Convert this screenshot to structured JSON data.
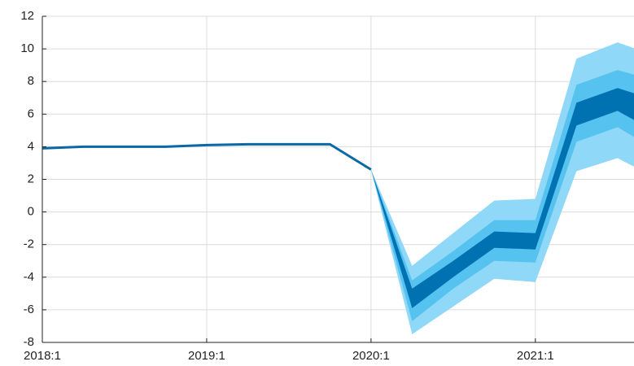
{
  "chart_data": {
    "type": "fan",
    "x": [
      2018,
      2018.25,
      2018.5,
      2018.75,
      2019,
      2019.25,
      2019.5,
      2019.75,
      2020,
      2020.25,
      2020.5,
      2020.75,
      2021,
      2021.25,
      2021.5,
      2021.75
    ],
    "line": {
      "color": "#0a68a6",
      "values": [
        3.9,
        4.0,
        4.0,
        4.0,
        4.1,
        4.15,
        4.15,
        4.15,
        2.6,
        null,
        null,
        null,
        null,
        null,
        null,
        null
      ]
    },
    "bands": [
      {
        "color": "#8fd8f8",
        "lower": [
          null,
          null,
          null,
          null,
          null,
          null,
          null,
          null,
          2.6,
          -7.5,
          -5.8,
          -4.1,
          -4.3,
          2.5,
          3.3,
          2.0
        ],
        "upper": [
          null,
          null,
          null,
          null,
          null,
          null,
          null,
          null,
          2.6,
          -3.3,
          -1.3,
          0.7,
          0.8,
          9.4,
          10.4,
          9.5
        ]
      },
      {
        "color": "#55c2f0",
        "lower": [
          null,
          null,
          null,
          null,
          null,
          null,
          null,
          null,
          2.6,
          -6.7,
          -4.7,
          -3.0,
          -3.1,
          4.3,
          5.2,
          3.7
        ],
        "upper": [
          null,
          null,
          null,
          null,
          null,
          null,
          null,
          null,
          2.6,
          -4.2,
          -2.4,
          -0.5,
          -0.5,
          7.8,
          8.7,
          8.0
        ]
      },
      {
        "color": "#0072b2",
        "lower": [
          null,
          null,
          null,
          null,
          null,
          null,
          null,
          null,
          2.6,
          -5.9,
          -4.0,
          -2.2,
          -2.3,
          5.3,
          6.2,
          4.8
        ],
        "upper": [
          null,
          null,
          null,
          null,
          null,
          null,
          null,
          null,
          2.6,
          -4.7,
          -3.0,
          -1.2,
          -1.3,
          6.7,
          7.6,
          6.8
        ]
      }
    ],
    "xlim": [
      2018,
      2021.6
    ],
    "xticks": [
      {
        "value": 2018,
        "label": "2018:1"
      },
      {
        "value": 2019,
        "label": "2019:1"
      },
      {
        "value": 2020,
        "label": "2020:1"
      },
      {
        "value": 2021,
        "label": "2021:1"
      }
    ],
    "ylim": [
      -8,
      12
    ],
    "yticks": [
      -8,
      -6,
      -4,
      -2,
      0,
      2,
      4,
      6,
      8,
      10,
      12
    ],
    "grid": true
  }
}
